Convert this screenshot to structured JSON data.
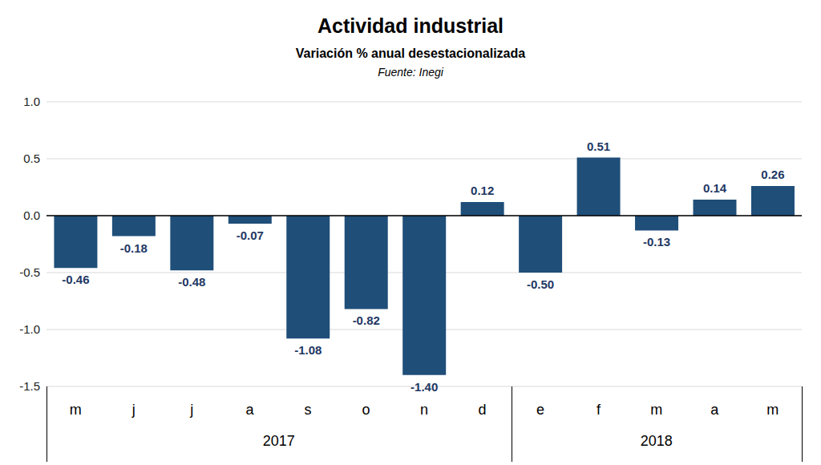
{
  "chart_data": {
    "type": "bar",
    "title": "Actividad industrial",
    "subtitle": "Variación % anual desestacionalizada",
    "source": "Fuente: Inegi",
    "categories": [
      "m",
      "j",
      "j",
      "a",
      "s",
      "o",
      "n",
      "d",
      "e",
      "f",
      "m",
      "a",
      "m"
    ],
    "values": [
      -0.46,
      -0.18,
      -0.48,
      -0.07,
      -1.08,
      -0.82,
      -1.4,
      0.12,
      -0.5,
      0.51,
      -0.13,
      0.14,
      0.26
    ],
    "value_labels": [
      "-0.46",
      "-0.18",
      "-0.48",
      "-0.07",
      "-1.08",
      "-0.82",
      "-1.40",
      "0.12",
      "-0.50",
      "0.51",
      "-0.13",
      "0.14",
      "0.26"
    ],
    "color": "#1f4e79",
    "ylim": [
      -1.5,
      1.0
    ],
    "yticks": [
      -1.5,
      {
        "value": -1,
        "label": "-1.0"
      },
      -0.5,
      {
        "value": 0,
        "label": "0.0"
      },
      0.5,
      {
        "value": 1,
        "label": "1.0"
      }
    ],
    "grid": true,
    "data_labels": true,
    "x_groups": [
      {
        "label": "2017",
        "categories": 8
      },
      {
        "label": "2018",
        "categories": 5
      }
    ]
  }
}
